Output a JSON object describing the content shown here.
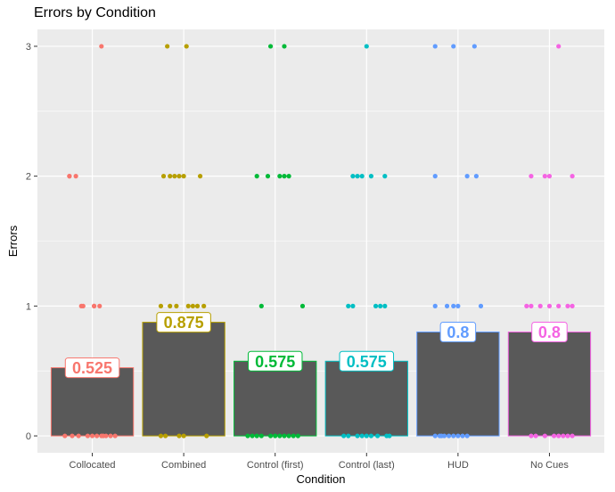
{
  "chart_data": {
    "type": "bar",
    "title": "Errors by Condition",
    "xlabel": "Condition",
    "ylabel": "Errors",
    "ylim": [
      -0.13,
      3.13
    ],
    "yticks": [
      0,
      1,
      2,
      3
    ],
    "grid": true,
    "background": "#ebebeb",
    "bar_fill": "#595959",
    "categories": [
      "Collocated",
      "Combined",
      "Control (first)",
      "Control (last)",
      "HUD",
      "No Cues"
    ],
    "values": [
      0.525,
      0.875,
      0.575,
      0.575,
      0.8,
      0.8
    ],
    "value_labels": [
      "0.525",
      "0.875",
      "0.575",
      "0.575",
      "0.8",
      "0.8"
    ],
    "colors": [
      "#f8766d",
      "#b79f00",
      "#00ba38",
      "#00bfc4",
      "#619cff",
      "#f564e3"
    ],
    "points": [
      {
        "category": "Collocated",
        "x_jitter": [
          0.1,
          -0.25,
          -0.18,
          -0.25,
          -0.1,
          0.02,
          -0.12,
          0.02,
          0.08,
          0.12,
          0.2,
          -0.05,
          -0.3,
          -0.22,
          0.1,
          0.15,
          -0.15,
          0.0,
          0.05,
          0.25
        ],
        "y": [
          3,
          2,
          2,
          2,
          1,
          1,
          1,
          1,
          1,
          0,
          0,
          0,
          0,
          0,
          0,
          0,
          0,
          0,
          0,
          0
        ]
      },
      {
        "category": "Combined",
        "x_jitter": [
          -0.18,
          0.03,
          -0.22,
          -0.15,
          -0.1,
          -0.05,
          0.0,
          0.18,
          -0.25,
          -0.15,
          -0.08,
          0.05,
          0.1,
          0.15,
          0.22,
          -0.25,
          -0.2,
          -0.05,
          0.0,
          0.25
        ],
        "y": [
          3,
          3,
          2,
          2,
          2,
          2,
          2,
          2,
          1,
          1,
          1,
          1,
          1,
          1,
          1,
          0,
          0,
          0,
          0,
          0
        ]
      },
      {
        "category": "Control (first)",
        "x_jitter": [
          -0.05,
          0.1,
          -0.2,
          -0.08,
          0.05,
          0.1,
          0.15,
          -0.15,
          0.3,
          -0.3,
          -0.25,
          -0.15,
          -0.05,
          0.0,
          0.1,
          0.2,
          0.25,
          -0.2,
          0.05,
          0.15
        ],
        "y": [
          3,
          3,
          2,
          2,
          2,
          2,
          2,
          1,
          1,
          0,
          0,
          0,
          0,
          0,
          0,
          0,
          0,
          0,
          0,
          0
        ]
      },
      {
        "category": "Control (last)",
        "x_jitter": [
          0.0,
          -0.15,
          -0.1,
          -0.05,
          0.05,
          0.2,
          -0.2,
          -0.15,
          0.1,
          0.15,
          0.2,
          -0.25,
          -0.2,
          -0.1,
          0.0,
          0.05,
          0.12,
          0.22,
          -0.05,
          0.25
        ],
        "y": [
          3,
          2,
          2,
          2,
          2,
          2,
          1,
          1,
          1,
          1,
          1,
          0,
          0,
          0,
          0,
          0,
          0,
          0,
          0,
          0
        ]
      },
      {
        "category": "HUD",
        "x_jitter": [
          -0.25,
          -0.05,
          0.18,
          -0.25,
          0.1,
          0.2,
          -0.25,
          -0.12,
          -0.05,
          0.0,
          0.25,
          -0.25,
          -0.2,
          -0.15,
          -0.1,
          -0.05,
          0.0,
          0.05,
          0.1,
          -0.18
        ],
        "y": [
          3,
          3,
          3,
          2,
          2,
          2,
          1,
          1,
          1,
          1,
          1,
          0,
          0,
          0,
          0,
          0,
          0,
          0,
          0,
          0
        ]
      },
      {
        "category": "No Cues",
        "x_jitter": [
          0.1,
          -0.2,
          -0.05,
          0.0,
          0.25,
          -0.25,
          -0.2,
          -0.1,
          0.0,
          0.1,
          0.2,
          0.25,
          -0.2,
          -0.05,
          0.05,
          0.1,
          0.15,
          0.2,
          0.25,
          -0.15
        ],
        "y": [
          3,
          2,
          2,
          2,
          2,
          1,
          1,
          1,
          1,
          1,
          1,
          1,
          0,
          0,
          0,
          0,
          0,
          0,
          0,
          0
        ]
      }
    ]
  }
}
